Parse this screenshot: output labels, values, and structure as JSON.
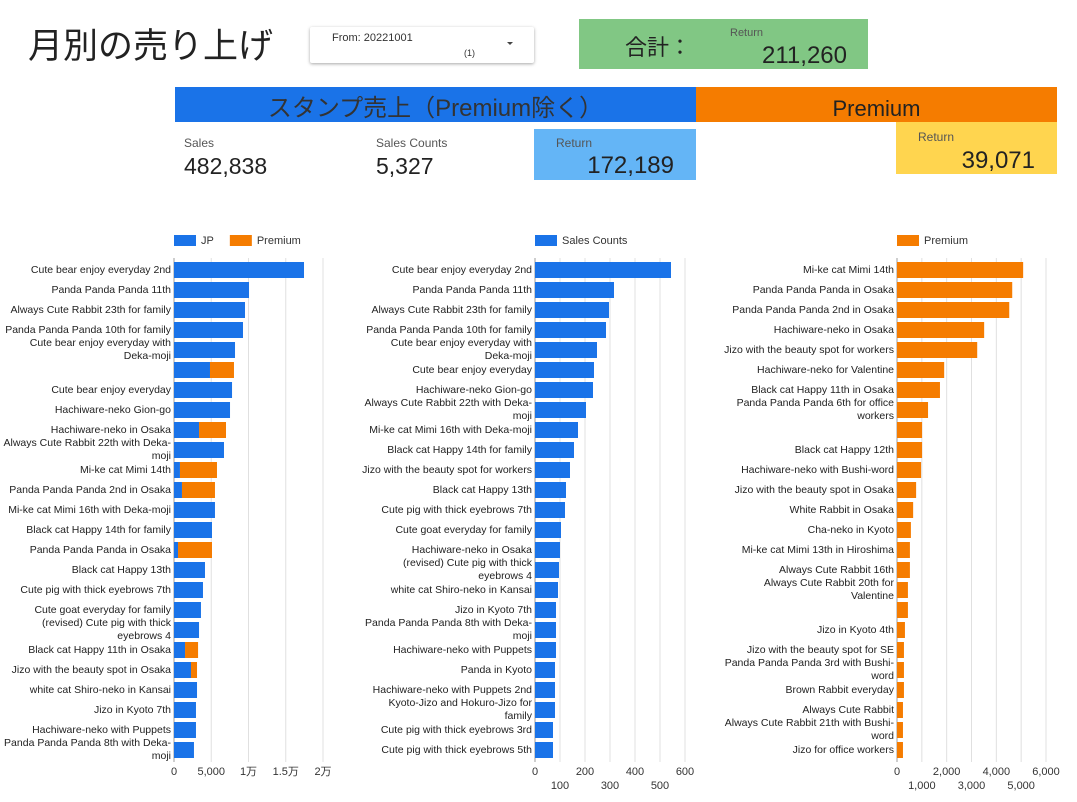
{
  "header": {
    "title": "月別の売り上げ",
    "filter_label": "From: 20221001",
    "filter_count": "(1)"
  },
  "total": {
    "label": "合計：",
    "metric": "Return",
    "value": "211,260"
  },
  "banners": [
    "スタンプ売上（Premium除く）",
    "Premium"
  ],
  "kpis": [
    {
      "label": "Sales",
      "value": "482,838"
    },
    {
      "label": "Sales Counts",
      "value": "5,327"
    },
    {
      "label": "Return",
      "value": "172,189"
    },
    {
      "label": "Return",
      "value": "39,071"
    }
  ],
  "chart_data": [
    {
      "type": "bar",
      "orientation": "horizontal",
      "stacked": true,
      "grid": true,
      "legend": "top",
      "categories": [
        "Cute bear enjoy everyday 2nd",
        "Panda Panda Panda 11th",
        "Always Cute Rabbit 23th for family",
        "Panda Panda Panda 10th for family",
        "Cute bear enjoy everyday with Deka-moji",
        null,
        "Cute bear enjoy everyday",
        "Hachiware-neko Gion-go",
        "Hachiware-neko in Osaka",
        "Always Cute Rabbit 22th with Deka-moji",
        "Mi-ke cat Mimi 14th",
        "Panda Panda Panda 2nd in Osaka",
        "Mi-ke cat Mimi 16th with Deka-moji",
        "Black cat Happy 14th for family",
        "Panda Panda Panda in Osaka",
        "Black cat Happy 13th",
        "Cute pig with thick eyebrows 7th",
        "Cute goat everyday for family",
        "(revised) Cute pig with thick eyebrows 4",
        "Black cat Happy 11th in Osaka",
        "Jizo with the beauty spot in Osaka",
        "white cat Shiro-neko in Kansai",
        "Jizo in Kyoto 7th",
        "Hachiware-neko with Puppets",
        "Panda Panda Panda 8th with Deka-moji"
      ],
      "series": [
        {
          "name": "JP",
          "color": "#1a73e8",
          "values": [
            17450,
            10070,
            9530,
            9260,
            8190,
            4830,
            7790,
            7520,
            3360,
            6710,
            800,
            1070,
            5500,
            5100,
            540,
            4160,
            3890,
            3620,
            3360,
            1480,
            2280,
            3090,
            2950,
            2950,
            2680
          ]
        },
        {
          "name": "Premium",
          "color": "#f57c00",
          "values": [
            0,
            0,
            0,
            0,
            0,
            3220,
            0,
            0,
            3620,
            0,
            4970,
            4430,
            0,
            0,
            4560,
            0,
            0,
            0,
            0,
            1750,
            810,
            0,
            0,
            0,
            0
          ]
        }
      ],
      "xlim": [
        0,
        20000
      ],
      "xticks": [
        0,
        {
          "value": 5000,
          "label": "5,000"
        },
        {
          "value": 10000,
          "label": "1万"
        },
        {
          "value": 15000,
          "label": "1.5万"
        },
        {
          "value": 20000,
          "label": "2万"
        }
      ]
    },
    {
      "type": "bar",
      "orientation": "horizontal",
      "stacked": false,
      "grid": true,
      "legend": "top",
      "categories": [
        "Cute bear enjoy everyday 2nd",
        "Panda Panda Panda 11th",
        "Always Cute Rabbit 23th for family",
        "Panda Panda Panda 10th for family",
        "Cute bear enjoy everyday with Deka-moji",
        "Cute bear enjoy everyday",
        "Hachiware-neko Gion-go",
        "Always Cute Rabbit 22th with Deka-moji",
        "Mi-ke cat Mimi 16th with Deka-moji",
        "Black cat Happy 14th for family",
        "Jizo with the beauty spot for workers",
        "Black cat Happy 13th",
        "Cute pig with thick eyebrows 7th",
        "Cute goat everyday for family",
        "Hachiware-neko in Osaka",
        "(revised) Cute pig with thick eyebrows 4",
        "white cat Shiro-neko in Kansai",
        "Jizo in Kyoto 7th",
        "Panda Panda Panda 8th with Deka-moji",
        "Hachiware-neko with Puppets",
        "Panda in Kyoto",
        "Hachiware-neko with Puppets 2nd",
        "Kyoto-Jizo and Hokuro-Jizo for family",
        "Cute pig with thick eyebrows 3rd",
        "Cute pig with thick eyebrows 5th"
      ],
      "series": [
        {
          "name": "Sales Counts",
          "color": "#1a73e8",
          "values": [
            544,
            316,
            296,
            284,
            248,
            236,
            232,
            204,
            172,
            156,
            140,
            124,
            120,
            104,
            100,
            96,
            92,
            84,
            84,
            84,
            80,
            80,
            80,
            72,
            72
          ]
        }
      ],
      "xlim": [
        0,
        600
      ],
      "xticks": [
        0,
        100,
        200,
        300,
        400,
        500,
        600
      ]
    },
    {
      "type": "bar",
      "orientation": "horizontal",
      "stacked": false,
      "grid": true,
      "legend": "top",
      "categories": [
        "Mi-ke cat Mimi 14th",
        "Panda Panda Panda in Osaka",
        "Panda Panda Panda 2nd in Osaka",
        "Hachiware-neko in Osaka",
        "Jizo with the beauty spot for workers",
        "Hachiware-neko for Valentine",
        "Black cat Happy 11th in Osaka",
        "Panda Panda Panda 6th for office workers",
        null,
        "Black cat Happy 12th",
        "Hachiware-neko with Bushi-word",
        "Jizo with the beauty spot in Osaka",
        "White Rabbit in Osaka",
        "Cha-neko in Kyoto",
        "Mi-ke cat Mimi 13th in Hiroshima",
        "Always Cute Rabbit 16th",
        "Always Cute Rabbit 20th for Valentine",
        null,
        "Jizo in Kyoto 4th",
        "Jizo with the beauty spot for SE",
        "Panda Panda Panda 3rd with Bushi-word",
        "Brown Rabbit everyday",
        "Always Cute Rabbit",
        "Always Cute Rabbit 21th with Bushi-word",
        "Jizo for office workers"
      ],
      "series": [
        {
          "name": "Premium",
          "color": "#f57c00",
          "values": [
            5080,
            4640,
            4520,
            3510,
            3230,
            1900,
            1730,
            1250,
            1010,
            1010,
            970,
            770,
            650,
            560,
            520,
            520,
            440,
            440,
            320,
            280,
            280,
            280,
            240,
            240,
            240
          ]
        }
      ],
      "xlim": [
        0,
        6000
      ],
      "xticks": [
        0,
        {
          "value": 1000,
          "label": "1,000"
        },
        {
          "value": 2000,
          "label": "2,000"
        },
        {
          "value": 3000,
          "label": "3,000"
        },
        {
          "value": 4000,
          "label": "4,000"
        },
        {
          "value": 5000,
          "label": "5,000"
        },
        {
          "value": 6000,
          "label": "6,000"
        }
      ]
    }
  ]
}
